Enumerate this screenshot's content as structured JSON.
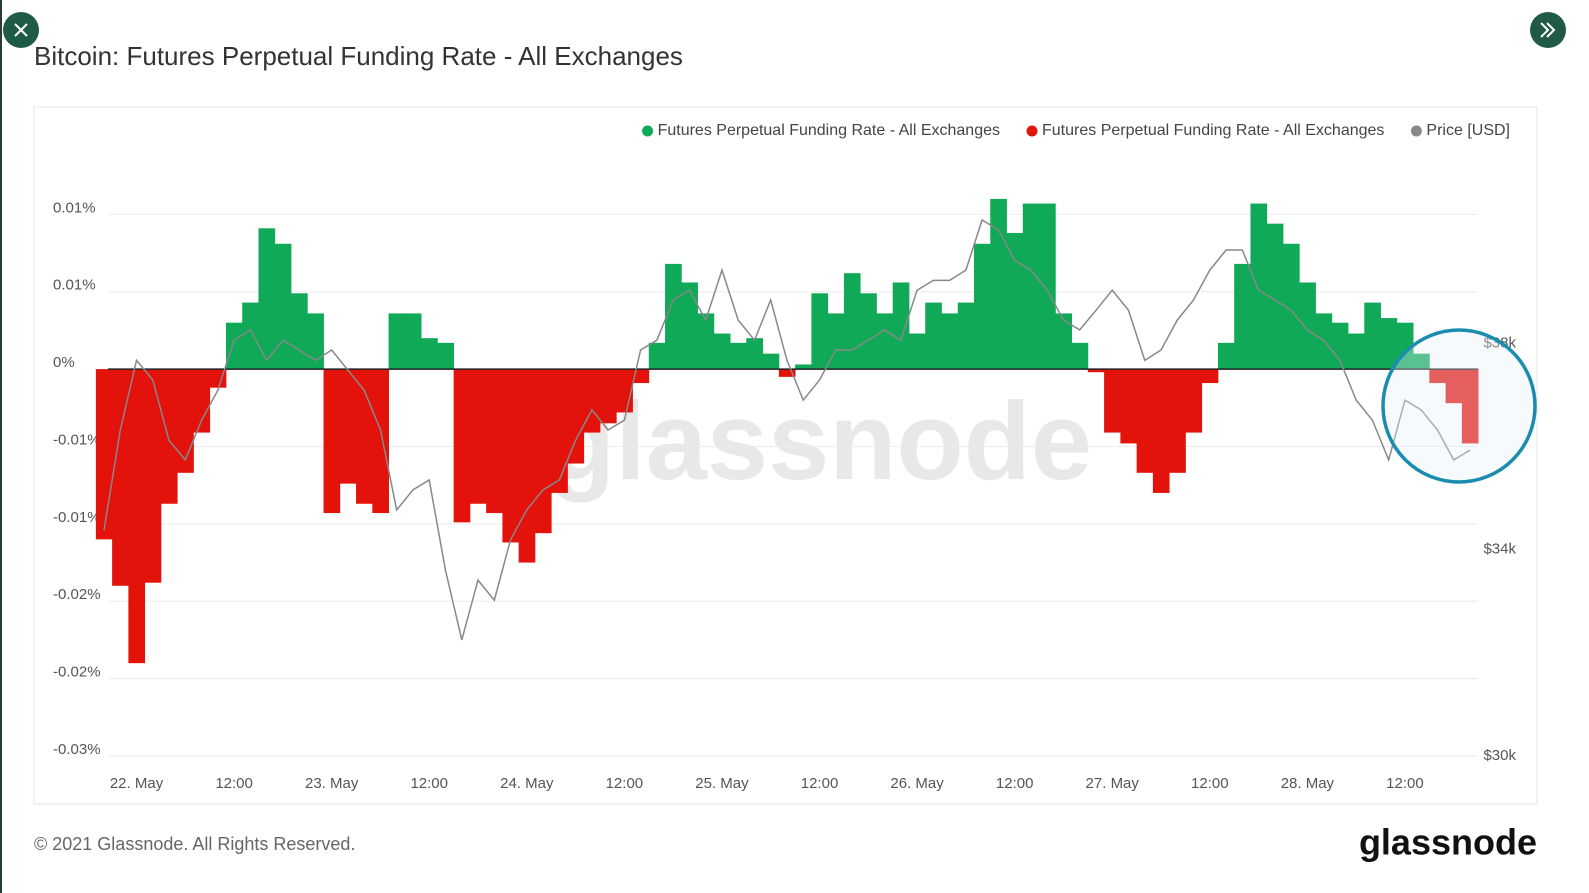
{
  "chart_data": {
    "type": "bar",
    "title": "Bitcoin: Futures Perpetual Funding Rate - All Exchanges",
    "watermark": "glassnode",
    "x": [
      "21 May 20:00",
      "21 May 22:00",
      "22 May 00:00",
      "22 May 02:00",
      "22 May 04:00",
      "22 May 06:00",
      "22 May 08:00",
      "22 May 10:00",
      "22 May 12:00",
      "22 May 14:00",
      "22 May 16:00",
      "22 May 18:00",
      "22 May 20:00",
      "22 May 22:00",
      "23 May 00:00",
      "23 May 02:00",
      "23 May 04:00",
      "23 May 06:00",
      "23 May 08:00",
      "23 May 10:00",
      "23 May 12:00",
      "23 May 14:00",
      "23 May 16:00",
      "23 May 18:00",
      "23 May 20:00",
      "23 May 22:00",
      "24 May 00:00",
      "24 May 02:00",
      "24 May 04:00",
      "24 May 06:00",
      "24 May 08:00",
      "24 May 10:00",
      "24 May 12:00",
      "24 May 14:00",
      "24 May 16:00",
      "24 May 18:00",
      "24 May 20:00",
      "24 May 22:00",
      "25 May 00:00",
      "25 May 02:00",
      "25 May 04:00",
      "25 May 06:00",
      "25 May 08:00",
      "25 May 10:00",
      "25 May 12:00",
      "25 May 14:00",
      "25 May 16:00",
      "25 May 18:00",
      "25 May 20:00",
      "25 May 22:00",
      "26 May 00:00",
      "26 May 02:00",
      "26 May 04:00",
      "26 May 06:00",
      "26 May 08:00",
      "26 May 10:00",
      "26 May 12:00",
      "26 May 14:00",
      "26 May 16:00",
      "26 May 18:00",
      "26 May 20:00",
      "26 May 22:00",
      "27 May 00:00",
      "27 May 02:00",
      "27 May 04:00",
      "27 May 06:00",
      "27 May 08:00",
      "27 May 10:00",
      "27 May 12:00",
      "27 May 14:00",
      "27 May 16:00",
      "27 May 18:00",
      "27 May 20:00",
      "27 May 22:00",
      "28 May 00:00",
      "28 May 02:00",
      "28 May 04:00",
      "28 May 06:00",
      "28 May 08:00",
      "28 May 10:00",
      "28 May 12:00",
      "28 May 14:00",
      "28 May 16:00",
      "28 May 18:00",
      "28 May 20:00"
    ],
    "series": [
      {
        "name": "Futures Perpetual Funding Rate - All Exchanges",
        "color": "#0fa958",
        "values": [
          null,
          null,
          null,
          null,
          null,
          null,
          null,
          null,
          0.003,
          0.0043,
          0.0091,
          0.0081,
          0.0049,
          0.0036,
          null,
          null,
          null,
          null,
          0.0036,
          0.0036,
          0.002,
          0.0017,
          null,
          null,
          null,
          null,
          null,
          null,
          null,
          null,
          null,
          null,
          null,
          null,
          0.0017,
          0.0068,
          0.0056,
          0.0036,
          0.0023,
          0.0017,
          0.002,
          0.001,
          null,
          0.0003,
          0.0049,
          0.0036,
          0.0062,
          0.0049,
          0.0036,
          0.0056,
          0.0023,
          0.0043,
          0.0036,
          0.0043,
          0.0081,
          0.011,
          0.0088,
          0.0107,
          0.0107,
          0.0036,
          0.0017,
          null,
          null,
          null,
          null,
          null,
          null,
          null,
          null,
          0.0017,
          0.0068,
          0.0107,
          0.0094,
          0.0081,
          0.0056,
          0.0036,
          0.003,
          0.0023,
          0.0043,
          0.0033,
          0.003,
          0.001,
          null,
          null,
          null
        ]
      },
      {
        "name": "Futures Perpetual Funding Rate - All Exchanges",
        "color": "#e3120b",
        "values": [
          -0.011,
          -0.014,
          -0.019,
          -0.0138,
          -0.0087,
          -0.0067,
          -0.0041,
          -0.0012,
          null,
          null,
          null,
          null,
          null,
          null,
          -0.0093,
          -0.0074,
          -0.0087,
          -0.0093,
          null,
          null,
          null,
          null,
          -0.0099,
          -0.0087,
          -0.0093,
          -0.0112,
          -0.0125,
          -0.0106,
          -0.008,
          -0.0061,
          -0.0041,
          -0.0035,
          -0.0028,
          -0.0009,
          null,
          null,
          null,
          null,
          null,
          null,
          null,
          null,
          -0.0005,
          null,
          null,
          null,
          null,
          null,
          null,
          null,
          null,
          null,
          null,
          null,
          null,
          null,
          null,
          null,
          null,
          null,
          null,
          -0.0002,
          -0.0041,
          -0.0048,
          -0.0067,
          -0.008,
          -0.0067,
          -0.0041,
          -0.0009,
          null,
          null,
          null,
          null,
          null,
          null,
          null,
          null,
          null,
          null,
          null,
          null,
          null,
          -0.0009,
          -0.0022,
          -0.0048
        ]
      },
      {
        "name": "Price [USD]",
        "color": "#888888",
        "type": "line",
        "axis": "y2",
        "values": [
          34380,
          36320,
          37670,
          37290,
          36120,
          35740,
          36510,
          37090,
          38060,
          38260,
          37670,
          38060,
          37870,
          37670,
          37870,
          37480,
          37090,
          36320,
          34770,
          35160,
          35350,
          33600,
          32250,
          33410,
          33020,
          34190,
          34770,
          35160,
          35350,
          36120,
          36710,
          36320,
          36510,
          37870,
          38060,
          38840,
          39030,
          38450,
          39420,
          38450,
          38060,
          38840,
          37670,
          36900,
          37290,
          37870,
          37870,
          38060,
          38260,
          38060,
          39030,
          39220,
          39220,
          39420,
          40390,
          40200,
          39610,
          39420,
          39030,
          38450,
          38260,
          38640,
          39030,
          38640,
          37670,
          37870,
          38450,
          38840,
          39420,
          39810,
          39810,
          39030,
          38840,
          38640,
          38260,
          38060,
          37670,
          36900,
          36510,
          35740,
          36900,
          36710,
          36320,
          35740,
          35930
        ]
      }
    ],
    "ylim": [
      -0.025,
      0.015
    ],
    "yticks": [
      {
        "value": 0.01,
        "label": "0.01%"
      },
      {
        "value": 0.005,
        "label": "0.01%"
      },
      {
        "value": 0,
        "label": "0%"
      },
      {
        "value": -0.005,
        "label": "-0.01%"
      },
      {
        "value": -0.01,
        "label": "-0.01%"
      },
      {
        "value": -0.015,
        "label": "-0.02%"
      },
      {
        "value": -0.02,
        "label": "-0.02%"
      },
      {
        "value": -0.025,
        "label": "-0.03%"
      }
    ],
    "y2lim": [
      30000,
      42000
    ],
    "y2ticks": [
      {
        "value": 30000,
        "label": "$30k"
      },
      {
        "value": 34000,
        "label": "$34k"
      },
      {
        "value": 38000,
        "label": "$38k"
      }
    ],
    "xticks": [
      {
        "value": "22 May 00:00",
        "label": "22. May"
      },
      {
        "value": "22 May 12:00",
        "label": "12:00"
      },
      {
        "value": "23 May 00:00",
        "label": "23. May"
      },
      {
        "value": "23 May 12:00",
        "label": "12:00"
      },
      {
        "value": "24 May 00:00",
        "label": "24. May"
      },
      {
        "value": "24 May 12:00",
        "label": "12:00"
      },
      {
        "value": "25 May 00:00",
        "label": "25. May"
      },
      {
        "value": "25 May 12:00",
        "label": "12:00"
      },
      {
        "value": "26 May 00:00",
        "label": "26. May"
      },
      {
        "value": "26 May 12:00",
        "label": "12:00"
      },
      {
        "value": "27 May 00:00",
        "label": "27. May"
      },
      {
        "value": "27 May 12:00",
        "label": "12:00"
      },
      {
        "value": "28 May 00:00",
        "label": "28. May"
      },
      {
        "value": "28 May 12:00",
        "label": "12:00"
      }
    ],
    "grid": true,
    "legend": "top-right"
  },
  "footer": {
    "copyright": "© 2021 Glassnode. All Rights Reserved.",
    "logo": "glassnode"
  }
}
